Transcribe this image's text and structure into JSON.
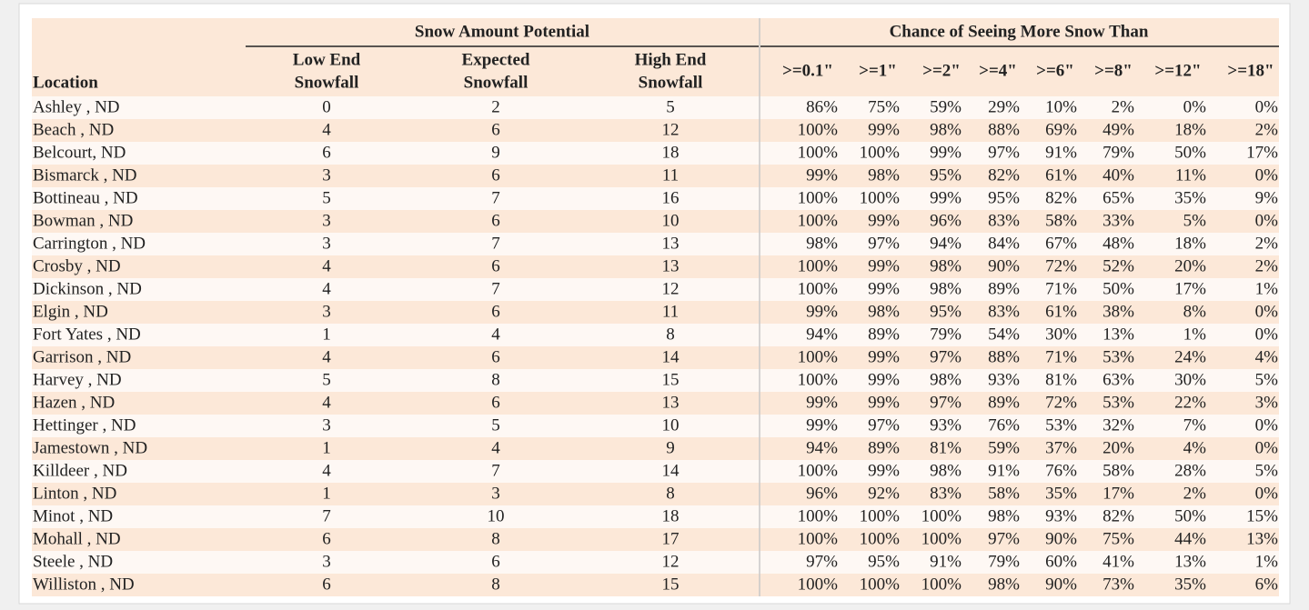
{
  "table": {
    "groups": [
      "Snow Amount Potential",
      "Chance of Seeing More Snow Than"
    ],
    "columns": [
      [
        "Location"
      ],
      [
        "Low End",
        "Snowfall"
      ],
      [
        "Expected",
        "Snowfall"
      ],
      [
        "High End",
        "Snowfall"
      ],
      [
        ">=0.1\""
      ],
      [
        ">=1\""
      ],
      [
        ">=2\""
      ],
      [
        ">=4\""
      ],
      [
        ">=6\""
      ],
      [
        ">=8\""
      ],
      [
        ">=12\""
      ],
      [
        ">=18\""
      ]
    ],
    "rows": [
      [
        "Ashley , ND",
        0,
        2,
        5,
        "86%",
        "75%",
        "59%",
        "29%",
        "10%",
        "2%",
        "0%",
        "0%"
      ],
      [
        "Beach , ND",
        4,
        6,
        12,
        "100%",
        "99%",
        "98%",
        "88%",
        "69%",
        "49%",
        "18%",
        "2%"
      ],
      [
        "Belcourt, ND",
        6,
        9,
        18,
        "100%",
        "100%",
        "99%",
        "97%",
        "91%",
        "79%",
        "50%",
        "17%"
      ],
      [
        "Bismarck , ND",
        3,
        6,
        11,
        "99%",
        "98%",
        "95%",
        "82%",
        "61%",
        "40%",
        "11%",
        "0%"
      ],
      [
        "Bottineau , ND",
        5,
        7,
        16,
        "100%",
        "100%",
        "99%",
        "95%",
        "82%",
        "65%",
        "35%",
        "9%"
      ],
      [
        "Bowman , ND",
        3,
        6,
        10,
        "100%",
        "99%",
        "96%",
        "83%",
        "58%",
        "33%",
        "5%",
        "0%"
      ],
      [
        "Carrington , ND",
        3,
        7,
        13,
        "98%",
        "97%",
        "94%",
        "84%",
        "67%",
        "48%",
        "18%",
        "2%"
      ],
      [
        "Crosby , ND",
        4,
        6,
        13,
        "100%",
        "99%",
        "98%",
        "90%",
        "72%",
        "52%",
        "20%",
        "2%"
      ],
      [
        "Dickinson , ND",
        4,
        7,
        12,
        "100%",
        "99%",
        "98%",
        "89%",
        "71%",
        "50%",
        "17%",
        "1%"
      ],
      [
        "Elgin , ND",
        3,
        6,
        11,
        "99%",
        "98%",
        "95%",
        "83%",
        "61%",
        "38%",
        "8%",
        "0%"
      ],
      [
        "Fort Yates , ND",
        1,
        4,
        8,
        "94%",
        "89%",
        "79%",
        "54%",
        "30%",
        "13%",
        "1%",
        "0%"
      ],
      [
        "Garrison , ND",
        4,
        6,
        14,
        "100%",
        "99%",
        "97%",
        "88%",
        "71%",
        "53%",
        "24%",
        "4%"
      ],
      [
        "Harvey , ND",
        5,
        8,
        15,
        "100%",
        "99%",
        "98%",
        "93%",
        "81%",
        "63%",
        "30%",
        "5%"
      ],
      [
        "Hazen , ND",
        4,
        6,
        13,
        "99%",
        "99%",
        "97%",
        "89%",
        "72%",
        "53%",
        "22%",
        "3%"
      ],
      [
        "Hettinger , ND",
        3,
        5,
        10,
        "99%",
        "97%",
        "93%",
        "76%",
        "53%",
        "32%",
        "7%",
        "0%"
      ],
      [
        "Jamestown , ND",
        1,
        4,
        9,
        "94%",
        "89%",
        "81%",
        "59%",
        "37%",
        "20%",
        "4%",
        "0%"
      ],
      [
        "Killdeer , ND",
        4,
        7,
        14,
        "100%",
        "99%",
        "98%",
        "91%",
        "76%",
        "58%",
        "28%",
        "5%"
      ],
      [
        "Linton , ND",
        1,
        3,
        8,
        "96%",
        "92%",
        "83%",
        "58%",
        "35%",
        "17%",
        "2%",
        "0%"
      ],
      [
        "Minot , ND",
        7,
        10,
        18,
        "100%",
        "100%",
        "100%",
        "98%",
        "93%",
        "82%",
        "50%",
        "15%"
      ],
      [
        "Mohall , ND",
        6,
        8,
        17,
        "100%",
        "100%",
        "100%",
        "97%",
        "90%",
        "75%",
        "44%",
        "13%"
      ],
      [
        "Steele , ND",
        3,
        6,
        12,
        "97%",
        "95%",
        "91%",
        "79%",
        "60%",
        "41%",
        "13%",
        "1%"
      ],
      [
        "Williston , ND",
        6,
        8,
        15,
        "100%",
        "100%",
        "100%",
        "98%",
        "90%",
        "73%",
        "35%",
        "6%"
      ]
    ]
  }
}
